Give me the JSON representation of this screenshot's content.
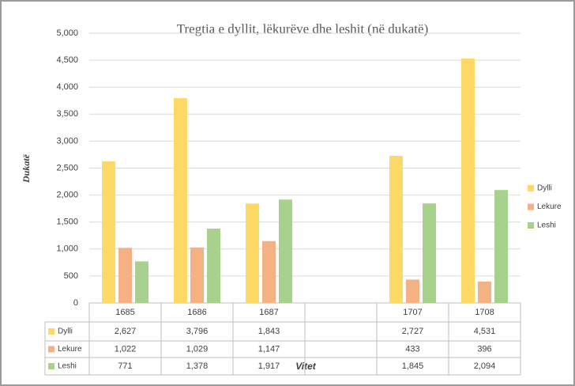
{
  "chart_data": {
    "type": "bar",
    "title": "Tregtia e dyllit, lëkurëve dhe leshit (në dukatë)",
    "y_label": "Dukatë",
    "x_label": "Vitet",
    "categories": [
      "1685",
      "1686",
      "1687",
      null,
      "1707",
      "1708"
    ],
    "series": [
      {
        "name": "Dylli",
        "color": "#ffd966",
        "values": [
          2627,
          3796,
          1843,
          null,
          2727,
          4531
        ],
        "value_labels": [
          "2,627",
          "3,796",
          "1,843",
          null,
          "2,727",
          "4,531"
        ]
      },
      {
        "name": "Lekure",
        "color": "#f4b183",
        "values": [
          1022,
          1029,
          1147,
          null,
          433,
          396
        ],
        "value_labels": [
          "1,022",
          "1,029",
          "1,147",
          null,
          "433",
          "396"
        ]
      },
      {
        "name": "Leshi",
        "color": "#a9d18e",
        "values": [
          771,
          1378,
          1917,
          null,
          1845,
          2094
        ],
        "value_labels": [
          "771",
          "1,378",
          "1,917",
          null,
          "1,845",
          "2,094"
        ]
      }
    ],
    "ylim": [
      0,
      5000
    ],
    "yticks": [
      0,
      500,
      {
        "value": 1000,
        "label": "1,000"
      },
      {
        "value": 1500,
        "label": "1,500"
      },
      {
        "value": 2000,
        "label": "2,000"
      },
      {
        "value": 2500,
        "label": "2,500"
      },
      {
        "value": 3000,
        "label": "3,000"
      },
      {
        "value": 3500,
        "label": "3,500"
      },
      {
        "value": 4000,
        "label": "4,000"
      },
      {
        "value": 4500,
        "label": "4,500"
      },
      {
        "value": 5000,
        "label": "5,000"
      }
    ],
    "grid": true,
    "legend": "right"
  }
}
